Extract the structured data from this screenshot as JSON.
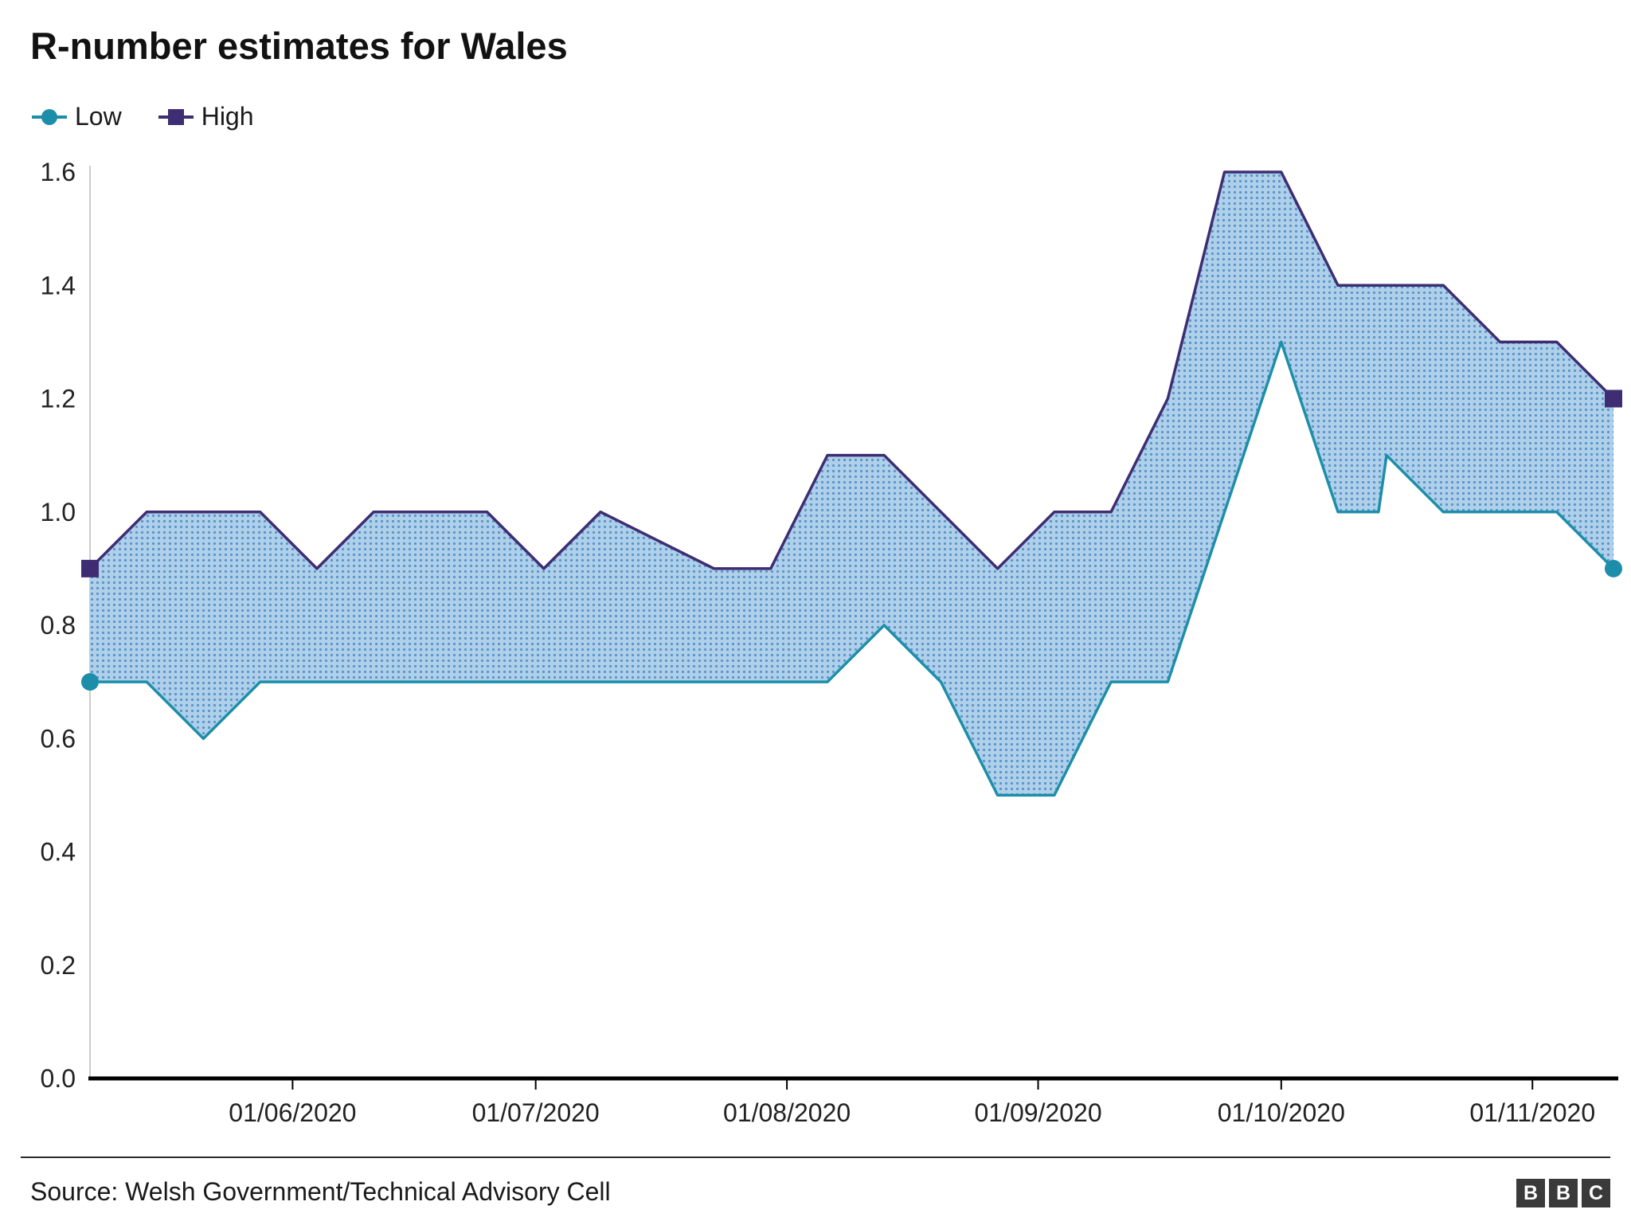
{
  "title": "R-number estimates for Wales",
  "legend": {
    "low_label": "Low",
    "high_label": "High"
  },
  "colors": {
    "low": "#1d8ea9",
    "high": "#3e2d72",
    "area_base": "#b0d0ea",
    "area_dot": "#5896cc",
    "axis": "#000000",
    "axis_secondary": "#cccccc",
    "text": "#222222"
  },
  "chart_data": {
    "type": "area",
    "subtype": "range-band",
    "title": "R-number estimates for Wales",
    "xlabel": "",
    "ylabel": "",
    "x": [
      "07/05/2020",
      "14/05/2020",
      "21/05/2020",
      "28/05/2020",
      "04/06/2020",
      "11/06/2020",
      "18/06/2020",
      "25/06/2020",
      "02/07/2020",
      "09/07/2020",
      "16/07/2020",
      "23/07/2020",
      "30/07/2020",
      "06/08/2020",
      "13/08/2020",
      "20/08/2020",
      "27/08/2020",
      "03/09/2020",
      "10/09/2020",
      "17/09/2020",
      "24/09/2020",
      "01/10/2020",
      "08/10/2020",
      "13/10/2020",
      "14/10/2020",
      "21/10/2020",
      "28/10/2020",
      "04/11/2020",
      "11/11/2020"
    ],
    "series": [
      {
        "name": "Low",
        "values": [
          0.7,
          0.7,
          0.6,
          0.7,
          0.7,
          0.7,
          0.7,
          0.7,
          0.7,
          0.7,
          0.7,
          0.7,
          0.7,
          0.7,
          0.8,
          0.7,
          0.5,
          0.5,
          0.7,
          0.7,
          1.0,
          1.3,
          1.0,
          1.0,
          1.1,
          1.0,
          1.0,
          1.0,
          0.9
        ]
      },
      {
        "name": "High",
        "values": [
          0.9,
          1.0,
          1.0,
          1.0,
          0.9,
          1.0,
          1.0,
          1.0,
          0.9,
          1.0,
          0.95,
          0.9,
          0.9,
          1.1,
          1.1,
          1.0,
          0.9,
          1.0,
          1.0,
          1.2,
          1.6,
          1.6,
          1.4,
          1.4,
          1.4,
          1.4,
          1.3,
          1.3,
          1.2
        ]
      }
    ],
    "ylim": [
      0,
      1.6
    ],
    "y_ticks": [
      "0.0",
      "0.2",
      "0.4",
      "0.6",
      "0.8",
      "1.0",
      "1.2",
      "1.4",
      "1.6"
    ],
    "x_ticks": [
      "01/06/2020",
      "01/07/2020",
      "01/08/2020",
      "01/09/2020",
      "01/10/2020",
      "01/11/2020"
    ],
    "grid": false,
    "legend_position": "top-left"
  },
  "footer": {
    "source": "Source: Welsh Government/Technical Advisory Cell",
    "logo_letters": [
      "B",
      "B",
      "C"
    ]
  }
}
